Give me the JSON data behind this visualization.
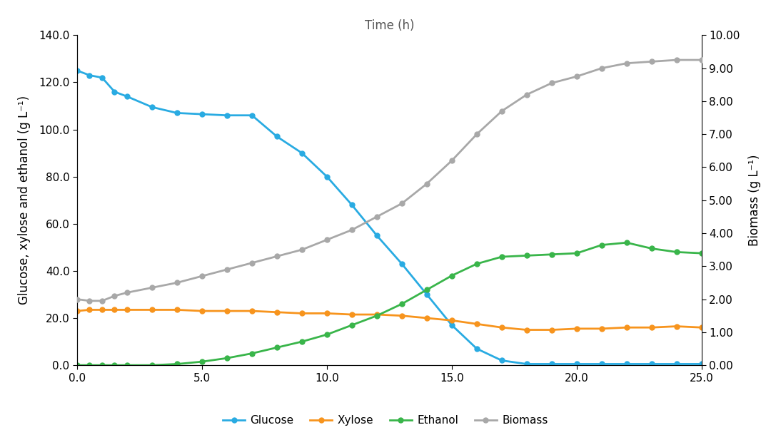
{
  "time_glucose": [
    0.0,
    0.5,
    1.0,
    1.5,
    2.0,
    3.0,
    4.0,
    5.0,
    6.0,
    7.0,
    8.0,
    9.0,
    10.0,
    11.0,
    12.0,
    13.0,
    14.0,
    15.0,
    16.0,
    17.0,
    18.0,
    19.0,
    20.0,
    21.0,
    22.0,
    23.0,
    24.0,
    25.0
  ],
  "glucose": [
    125.0,
    123.0,
    122.0,
    116.0,
    114.0,
    109.5,
    107.0,
    106.5,
    106.0,
    106.0,
    97.0,
    90.0,
    80.0,
    68.0,
    55.0,
    43.0,
    30.0,
    17.0,
    7.0,
    2.0,
    0.5,
    0.5,
    0.5,
    0.5,
    0.5,
    0.5,
    0.5,
    0.5
  ],
  "time_xylose": [
    0.0,
    0.5,
    1.0,
    1.5,
    2.0,
    3.0,
    4.0,
    5.0,
    6.0,
    7.0,
    8.0,
    9.0,
    10.0,
    11.0,
    12.0,
    13.0,
    14.0,
    15.0,
    16.0,
    17.0,
    18.0,
    19.0,
    20.0,
    21.0,
    22.0,
    23.0,
    24.0,
    25.0
  ],
  "xylose": [
    23.0,
    23.5,
    23.5,
    23.5,
    23.5,
    23.5,
    23.5,
    23.0,
    23.0,
    23.0,
    22.5,
    22.0,
    22.0,
    21.5,
    21.5,
    21.0,
    20.0,
    19.0,
    17.5,
    16.0,
    15.0,
    15.0,
    15.5,
    15.5,
    16.0,
    16.0,
    16.5,
    16.0
  ],
  "time_ethanol": [
    0.0,
    0.5,
    1.0,
    1.5,
    2.0,
    3.0,
    4.0,
    5.0,
    6.0,
    7.0,
    8.0,
    9.0,
    10.0,
    11.0,
    12.0,
    13.0,
    14.0,
    15.0,
    16.0,
    17.0,
    18.0,
    19.0,
    20.0,
    21.0,
    22.0,
    23.0,
    24.0,
    25.0
  ],
  "ethanol": [
    0.0,
    0.0,
    0.0,
    0.0,
    0.0,
    0.0,
    0.5,
    1.5,
    3.0,
    5.0,
    7.5,
    10.0,
    13.0,
    17.0,
    21.0,
    26.0,
    32.0,
    38.0,
    43.0,
    46.0,
    46.5,
    47.0,
    47.5,
    51.0,
    52.0,
    49.5,
    48.0,
    47.5
  ],
  "time_biomass": [
    0.0,
    0.5,
    1.0,
    1.5,
    2.0,
    3.0,
    4.0,
    5.0,
    6.0,
    7.0,
    8.0,
    9.0,
    10.0,
    11.0,
    12.0,
    13.0,
    14.0,
    15.0,
    16.0,
    17.0,
    18.0,
    19.0,
    20.0,
    21.0,
    22.0,
    23.0,
    24.0,
    25.0
  ],
  "biomass": [
    2.0,
    1.95,
    1.95,
    2.1,
    2.2,
    2.35,
    2.5,
    2.7,
    2.9,
    3.1,
    3.3,
    3.5,
    3.8,
    4.1,
    4.5,
    4.9,
    5.5,
    6.2,
    7.0,
    7.7,
    8.2,
    8.55,
    8.75,
    9.0,
    9.15,
    9.2,
    9.25,
    9.25
  ],
  "glucose_color": "#29ABE2",
  "xylose_color": "#F7941D",
  "ethanol_color": "#39B54A",
  "biomass_color": "#A8A8A8",
  "title": "Time (h)",
  "ylabel_left": "Glucose, xylose and ethanol (g L⁻¹)",
  "ylabel_right": "Biomass (g L⁻¹)",
  "ylim_left": [
    0.0,
    140.0
  ],
  "ylim_right": [
    0.0,
    10.0
  ],
  "xlim": [
    0.0,
    25.0
  ],
  "yticks_left": [
    0.0,
    20.0,
    40.0,
    60.0,
    80.0,
    100.0,
    120.0,
    140.0
  ],
  "yticks_right": [
    0.0,
    1.0,
    2.0,
    3.0,
    4.0,
    5.0,
    6.0,
    7.0,
    8.0,
    9.0,
    10.0
  ],
  "xticks": [
    0.0,
    5.0,
    10.0,
    15.0,
    20.0,
    25.0
  ],
  "legend_labels": [
    "Glucose",
    "Xylose",
    "Ethanol",
    "Biomass"
  ],
  "marker": "o",
  "markersize": 5,
  "linewidth": 2.0
}
